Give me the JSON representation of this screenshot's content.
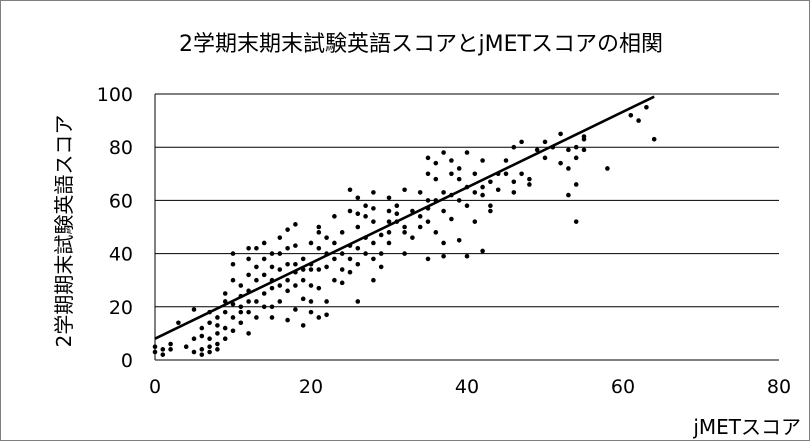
{
  "chart_data": {
    "type": "scatter",
    "title": "2学期末期末試験英語スコアとjMETスコアの相関",
    "xlabel": "jMETスコア",
    "ylabel": "2学期期末試験英語スコア",
    "xlim": [
      0,
      80
    ],
    "ylim": [
      0,
      100
    ],
    "x_ticks": [
      0,
      20,
      40,
      60,
      80
    ],
    "y_ticks": [
      0,
      20,
      40,
      60,
      80,
      100
    ],
    "grid": "horizontal",
    "legend": "none",
    "trendline": {
      "type": "linear",
      "x": [
        0,
        64
      ],
      "y": [
        8,
        99
      ]
    },
    "points": [
      [
        0,
        5
      ],
      [
        0,
        3
      ],
      [
        1,
        4
      ],
      [
        1,
        2
      ],
      [
        2,
        6
      ],
      [
        2,
        4
      ],
      [
        3,
        14
      ],
      [
        4,
        5
      ],
      [
        5,
        19
      ],
      [
        5,
        8
      ],
      [
        5,
        3
      ],
      [
        6,
        2
      ],
      [
        6,
        4
      ],
      [
        6,
        9
      ],
      [
        6,
        12
      ],
      [
        7,
        8
      ],
      [
        7,
        5
      ],
      [
        7,
        14
      ],
      [
        7,
        18
      ],
      [
        7,
        3
      ],
      [
        8,
        6
      ],
      [
        8,
        10
      ],
      [
        8,
        13
      ],
      [
        8,
        16
      ],
      [
        8,
        4
      ],
      [
        9,
        22
      ],
      [
        9,
        18
      ],
      [
        9,
        12
      ],
      [
        9,
        8
      ],
      [
        9,
        25
      ],
      [
        10,
        40
      ],
      [
        10,
        36
      ],
      [
        10,
        30
      ],
      [
        10,
        21
      ],
      [
        10,
        16
      ],
      [
        10,
        11
      ],
      [
        11,
        20
      ],
      [
        11,
        24
      ],
      [
        11,
        14
      ],
      [
        11,
        18
      ],
      [
        11,
        28
      ],
      [
        12,
        42
      ],
      [
        12,
        38
      ],
      [
        12,
        32
      ],
      [
        12,
        26
      ],
      [
        12,
        22
      ],
      [
        12,
        18
      ],
      [
        12,
        10
      ],
      [
        13,
        42
      ],
      [
        13,
        35
      ],
      [
        13,
        30
      ],
      [
        13,
        16
      ],
      [
        13,
        22
      ],
      [
        14,
        25
      ],
      [
        14,
        32
      ],
      [
        14,
        38
      ],
      [
        14,
        44
      ],
      [
        14,
        20
      ],
      [
        15,
        27
      ],
      [
        15,
        35
      ],
      [
        15,
        30
      ],
      [
        15,
        20
      ],
      [
        15,
        16
      ],
      [
        16,
        34
      ],
      [
        16,
        28
      ],
      [
        16,
        40
      ],
      [
        16,
        46
      ],
      [
        16,
        22
      ],
      [
        17,
        30
      ],
      [
        17,
        36
      ],
      [
        17,
        26
      ],
      [
        17,
        49
      ],
      [
        17,
        15
      ],
      [
        18,
        33
      ],
      [
        18,
        28
      ],
      [
        18,
        36
      ],
      [
        18,
        43
      ],
      [
        18,
        51
      ],
      [
        18,
        19
      ],
      [
        19,
        30
      ],
      [
        19,
        23
      ],
      [
        19,
        38
      ],
      [
        19,
        13
      ],
      [
        20,
        36
      ],
      [
        20,
        44
      ],
      [
        20,
        28
      ],
      [
        20,
        22
      ],
      [
        20,
        18
      ],
      [
        21,
        48
      ],
      [
        21,
        42
      ],
      [
        21,
        34
      ],
      [
        21,
        50
      ],
      [
        21,
        16
      ],
      [
        22,
        40
      ],
      [
        22,
        35
      ],
      [
        22,
        46
      ],
      [
        22,
        17
      ],
      [
        22,
        22
      ],
      [
        23,
        30
      ],
      [
        23,
        38
      ],
      [
        23,
        44
      ],
      [
        23,
        54
      ],
      [
        24,
        40
      ],
      [
        24,
        34
      ],
      [
        24,
        48
      ],
      [
        24,
        29
      ],
      [
        25,
        38
      ],
      [
        25,
        56
      ],
      [
        25,
        64
      ],
      [
        25,
        33
      ],
      [
        26,
        42
      ],
      [
        26,
        50
      ],
      [
        26,
        36
      ],
      [
        26,
        22
      ],
      [
        26,
        61
      ],
      [
        27,
        46
      ],
      [
        27,
        54
      ],
      [
        27,
        40
      ],
      [
        27,
        58
      ],
      [
        28,
        44
      ],
      [
        28,
        38
      ],
      [
        28,
        52
      ],
      [
        28,
        63
      ],
      [
        28,
        30
      ],
      [
        29,
        47
      ],
      [
        29,
        40
      ],
      [
        29,
        35
      ],
      [
        30,
        52
      ],
      [
        30,
        56
      ],
      [
        30,
        44
      ],
      [
        30,
        48
      ],
      [
        31,
        55
      ],
      [
        31,
        52
      ],
      [
        31,
        58
      ],
      [
        32,
        50
      ],
      [
        32,
        40
      ],
      [
        32,
        64
      ],
      [
        32,
        48
      ],
      [
        33,
        46
      ],
      [
        33,
        56
      ],
      [
        34,
        54
      ],
      [
        34,
        63
      ],
      [
        34,
        50
      ],
      [
        35,
        57
      ],
      [
        35,
        70
      ],
      [
        35,
        76
      ],
      [
        35,
        52
      ],
      [
        35,
        60
      ],
      [
        36,
        60
      ],
      [
        36,
        68
      ],
      [
        36,
        74
      ],
      [
        36,
        48
      ],
      [
        37,
        63
      ],
      [
        37,
        78
      ],
      [
        37,
        44
      ],
      [
        37,
        56
      ],
      [
        38,
        62
      ],
      [
        38,
        70
      ],
      [
        38,
        75
      ],
      [
        38,
        53
      ],
      [
        39,
        60
      ],
      [
        39,
        68
      ],
      [
        39,
        72
      ],
      [
        39,
        45
      ],
      [
        40,
        65
      ],
      [
        40,
        58
      ],
      [
        40,
        78
      ],
      [
        40,
        39
      ],
      [
        41,
        63
      ],
      [
        41,
        70
      ],
      [
        41,
        52
      ],
      [
        42,
        65
      ],
      [
        42,
        62
      ],
      [
        42,
        75
      ],
      [
        43,
        58
      ],
      [
        43,
        67
      ],
      [
        43,
        56
      ],
      [
        44,
        64
      ],
      [
        44,
        70
      ],
      [
        45,
        70
      ],
      [
        45,
        75
      ],
      [
        46,
        67
      ],
      [
        46,
        80
      ],
      [
        46,
        63
      ],
      [
        47,
        70
      ],
      [
        47,
        82
      ],
      [
        48,
        68
      ],
      [
        48,
        66
      ],
      [
        49,
        79
      ],
      [
        50,
        76
      ],
      [
        50,
        82
      ],
      [
        51,
        80
      ],
      [
        52,
        85
      ],
      [
        52,
        74
      ],
      [
        53,
        79
      ],
      [
        53,
        72
      ],
      [
        53,
        62
      ],
      [
        54,
        80
      ],
      [
        54,
        66
      ],
      [
        54,
        52
      ],
      [
        54,
        76
      ],
      [
        55,
        83
      ],
      [
        55,
        84
      ],
      [
        55,
        79
      ],
      [
        58,
        72
      ],
      [
        61,
        92
      ],
      [
        62,
        90
      ],
      [
        63,
        95
      ],
      [
        64,
        83
      ],
      [
        35,
        38
      ],
      [
        37,
        39
      ],
      [
        42,
        41
      ],
      [
        26,
        55
      ],
      [
        28,
        57
      ],
      [
        30,
        61
      ],
      [
        19,
        34
      ],
      [
        21,
        27
      ],
      [
        15,
        40
      ],
      [
        17,
        42
      ],
      [
        20,
        34
      ],
      [
        25,
        43
      ]
    ]
  }
}
